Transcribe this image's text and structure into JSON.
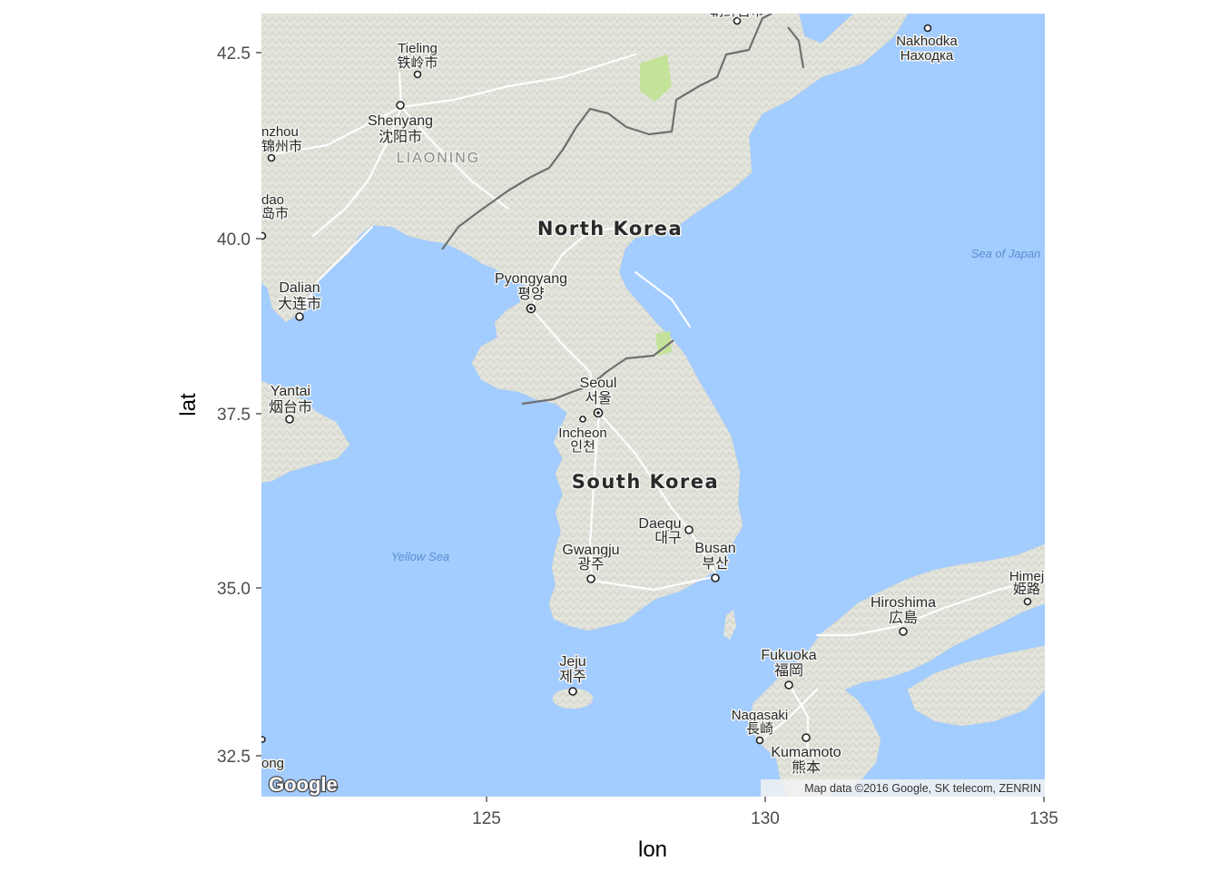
{
  "chart_data": {
    "type": "map",
    "xlabel": "lon",
    "ylabel": "lat",
    "xlim": [
      121,
      135
    ],
    "ylim": [
      31.9,
      43.0
    ],
    "x_ticks": [
      "125",
      "130",
      "135"
    ],
    "y_ticks": [
      "32.5",
      "35.0",
      "37.5",
      "40.0",
      "42.5"
    ],
    "grid": false,
    "countries": [
      "North Korea",
      "South Korea"
    ],
    "regions": [
      "LIAONING"
    ],
    "seas": [
      "Sea of Japan",
      "Yellow Sea"
    ],
    "cities": [
      {
        "name": "Tieling",
        "local": "铁岭市"
      },
      {
        "name": "Shenyang",
        "local": "沈阳市"
      },
      {
        "name": "nzhou",
        "local": "锦州市"
      },
      {
        "name": "dao",
        "local": "岛市"
      },
      {
        "name": "Dalian",
        "local": "大连市"
      },
      {
        "name": "Yantai",
        "local": "烟台市"
      },
      {
        "name": "Pyongyang",
        "local": "평양"
      },
      {
        "name": "Seoul",
        "local": "서울"
      },
      {
        "name": "Incheon",
        "local": "인천"
      },
      {
        "name": "Daegu",
        "local": "대구"
      },
      {
        "name": "Busan",
        "local": "부산"
      },
      {
        "name": "Gwangju",
        "local": "광주"
      },
      {
        "name": "Jeju",
        "local": "제주"
      },
      {
        "name": "Nakhodka",
        "local": "Находка"
      },
      {
        "name": "Hiroshima",
        "local": "広島"
      },
      {
        "name": "Himej",
        "local": "姫路"
      },
      {
        "name": "Fukuoka",
        "local": "福岡"
      },
      {
        "name": "Nagasaki",
        "local": "長崎"
      },
      {
        "name": "Kumamoto",
        "local": "熊本"
      },
      {
        "name": "",
        "local": "朝鲜吉市"
      },
      {
        "name": "ong",
        "local": ""
      }
    ],
    "attribution": "Map data ©2016 Google, SK telecom, ZENRIN",
    "logo": "Google"
  },
  "colors": {
    "water": "#a3ccff",
    "land": "#e6e8e0",
    "border": "#6f6f6f",
    "park": "#c5e29a"
  }
}
